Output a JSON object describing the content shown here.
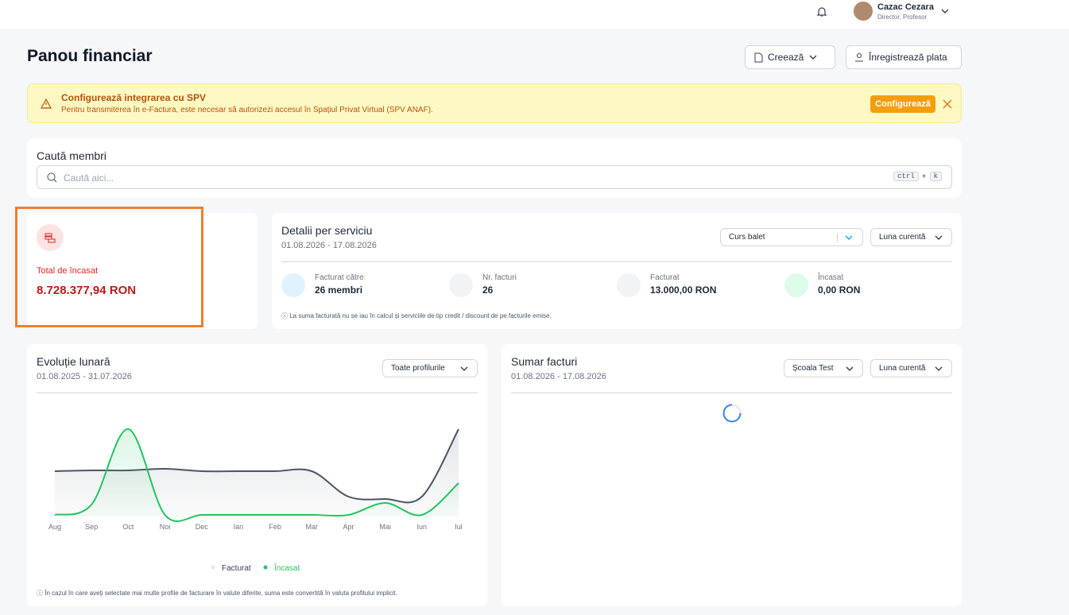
{
  "topbar": {
    "user_name": "Cazac Cezara",
    "user_role": "Director, Profesor"
  },
  "header": {
    "title": "Panou financiar",
    "create_button": "Creează",
    "register_payment_button": "Înregistrează plata"
  },
  "alert": {
    "title": "Configurează integrarea cu SPV",
    "text": "Pentru transmiterea în e-Factura, este necesar să autorizezi accesul în Spațiul Privat Virtual (SPV ANAF).",
    "button": "Configurează"
  },
  "search": {
    "title": "Caută membri",
    "placeholder": "Caută aici...",
    "shortcut_key1": "ctrl",
    "shortcut_plus": "+",
    "shortcut_key2": "k"
  },
  "total_card": {
    "label": "Total de încasat",
    "value": "8.728.377,94 RON"
  },
  "service_details": {
    "title": "Detalii per serviciu",
    "date_range": "01.08.2026 - 17.08.2026",
    "service_select": "Curs balet",
    "period_select": "Luna curentă",
    "stats": [
      {
        "label": "Facturat către",
        "value": "26 membri"
      },
      {
        "label": "Nr. facturi",
        "value": "26"
      },
      {
        "label": "Facturat",
        "value": "13.000,00 RON"
      },
      {
        "label": "Încasat",
        "value": "0,00 RON"
      }
    ],
    "note": "La suma facturată nu se iau în calcul și serviciile de tip credit / discount de pe facturile emise."
  },
  "monthly_evolution": {
    "title": "Evoluție lunară",
    "date_range": "01.08.2025 - 31.07.2026",
    "profile_select": "Toate profilurile",
    "chart": {
      "type": "line",
      "categories": [
        "Aug",
        "Sep",
        "Oct",
        "Noi",
        "Dec",
        "Ian",
        "Feb",
        "Mar",
        "Apr",
        "Mai",
        "Iun",
        "Iul"
      ],
      "series": [
        {
          "name": "Facturat",
          "color": "#4b5563",
          "values": [
            57,
            58,
            58,
            60,
            57,
            57,
            57,
            57,
            25,
            22,
            25,
            110
          ]
        },
        {
          "name": "Încasat",
          "color": "#22c55e",
          "values": [
            2,
            15,
            110,
            2,
            2,
            2,
            2,
            2,
            2,
            17,
            2,
            42
          ]
        }
      ]
    },
    "note": "În cazul în care aveți selectate mai multe profile de facturare în valute diferite, suma este convertită în valuta profilului implicit."
  },
  "invoice_summary": {
    "title": "Sumar facturi",
    "date_range": "01.08.2026 - 17.08.2026",
    "school_select": "Școala Test",
    "period_select": "Luna curentă"
  }
}
